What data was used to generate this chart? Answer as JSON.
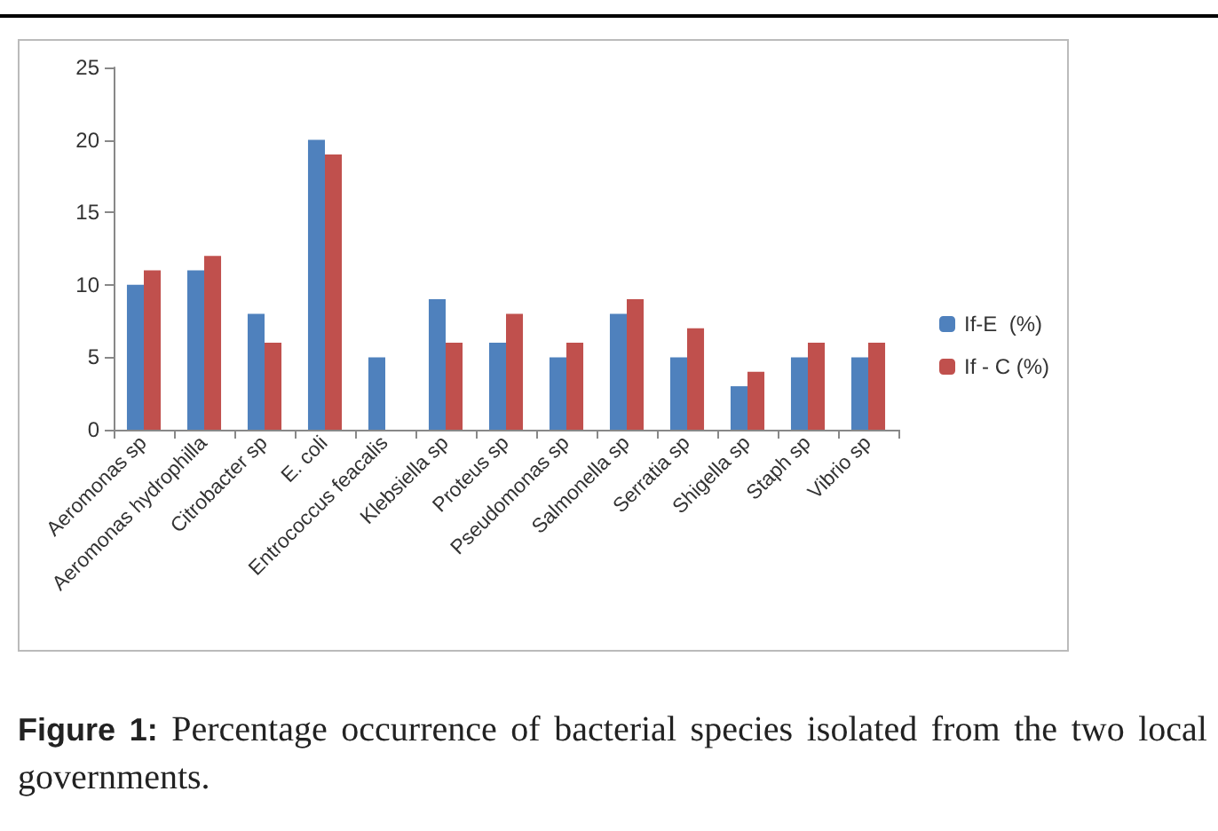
{
  "chart_data": {
    "type": "bar",
    "categories": [
      "Aeromonas sp",
      "Aeromonas hydrophilla",
      "Citrobacter sp",
      "E. coli",
      "Entrococcus feacalis",
      "Klebsiella sp",
      "Proteus sp",
      "Pseudomonas sp",
      "Salmonella sp",
      "Serratia sp",
      "Shigella sp",
      "Staph sp",
      "Vibrio sp"
    ],
    "series": [
      {
        "name": "If-E  (%)",
        "color": "#4f81bd",
        "values": [
          10,
          11,
          8,
          20,
          5,
          9,
          6,
          5,
          8,
          5,
          3,
          5,
          5
        ]
      },
      {
        "name": "If - C (%)",
        "color": "#c0504d",
        "values": [
          11,
          12,
          6,
          19,
          0,
          6,
          8,
          6,
          9,
          7,
          4,
          6,
          6
        ]
      }
    ],
    "ylim": [
      0,
      25
    ],
    "yticks": [
      0,
      5,
      10,
      15,
      20,
      25
    ],
    "grid": false,
    "legend": "right",
    "annotations": [
      "Figure 1: Percentage occurrence of bacterial species isolated from the two local governments."
    ]
  }
}
